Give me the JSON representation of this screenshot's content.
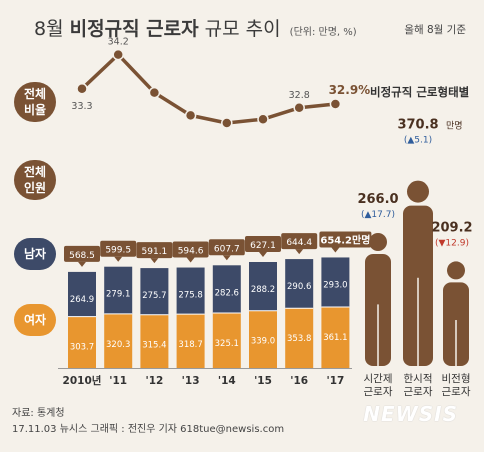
{
  "header": {
    "title_prefix": "8월",
    "title_bold": "비정규직 근로자",
    "title_suffix": "규모 추이",
    "unit_note": "(단위: 만명, %)",
    "basis_note": "올해 8월 기준"
  },
  "row_labels": {
    "ratio": "전체 비율",
    "total": "전체 인원",
    "male": "남자",
    "female": "여자"
  },
  "emp_types_title": "비정규직 근로형태별",
  "chart_data": [
    {
      "type": "line",
      "x": [
        "2010년",
        "'11",
        "'12",
        "'13",
        "'14",
        "'15",
        "'16",
        "'17"
      ],
      "values": [
        33.3,
        34.2,
        33.2,
        32.6,
        32.4,
        32.5,
        32.8,
        32.9
      ],
      "data_labels": [
        "33.3",
        "34.2",
        "",
        "",
        "",
        "",
        "32.8",
        "32.9%"
      ],
      "color": "#7a5234",
      "grid": false
    },
    {
      "type": "bar",
      "stacked": true,
      "categories": [
        "2010년",
        "'11",
        "'12",
        "'13",
        "'14",
        "'15",
        "'16",
        "'17"
      ],
      "series": [
        {
          "name": "남자",
          "values": [
            264.9,
            279.1,
            275.7,
            275.8,
            282.6,
            288.2,
            290.6,
            293.0
          ],
          "color": "#3d4a68"
        },
        {
          "name": "여자",
          "values": [
            303.7,
            320.3,
            315.4,
            318.7,
            325.1,
            339.0,
            353.8,
            361.1
          ],
          "color": "#e8962f"
        }
      ],
      "value_labels": {
        "male": [
          "264.9",
          "279.1",
          "275.7",
          "275.8",
          "282.6",
          "288.2",
          "290.6",
          "293.0"
        ],
        "female": [
          "303.7",
          "320.3",
          "315.4",
          "318.7",
          "325.1",
          "339.0",
          "353.8",
          "361.1"
        ]
      },
      "totals": [
        568.5,
        599.5,
        591.1,
        594.6,
        607.7,
        627.1,
        644.4,
        654.2
      ],
      "total_labels": [
        "568.5",
        "599.5",
        "591.1",
        "594.6",
        "607.7",
        "627.1",
        "644.4",
        "654.2만명"
      ],
      "grid": false
    },
    {
      "type": "bar",
      "categories": [
        "시간제 근로자",
        "한시적 근로자",
        "비전형 근로자"
      ],
      "values": [
        266.0,
        370.8,
        209.2
      ],
      "value_labels": [
        "266.0",
        "370.8",
        "209.2"
      ],
      "value_unit": "만명",
      "changes": [
        "(▲17.7)",
        "(▲5.1)",
        "(▼12.9)"
      ],
      "change_colors": [
        "#2f5d9c",
        "#2f5d9c",
        "#c0392b"
      ],
      "color": "#7a5234"
    }
  ],
  "footer": {
    "source": "자료: 통계청",
    "credit": "17.11.03   뉴시스 그래픽 : 전진우 기자 618tue@newsis.com",
    "watermark": "NEWSIS"
  }
}
